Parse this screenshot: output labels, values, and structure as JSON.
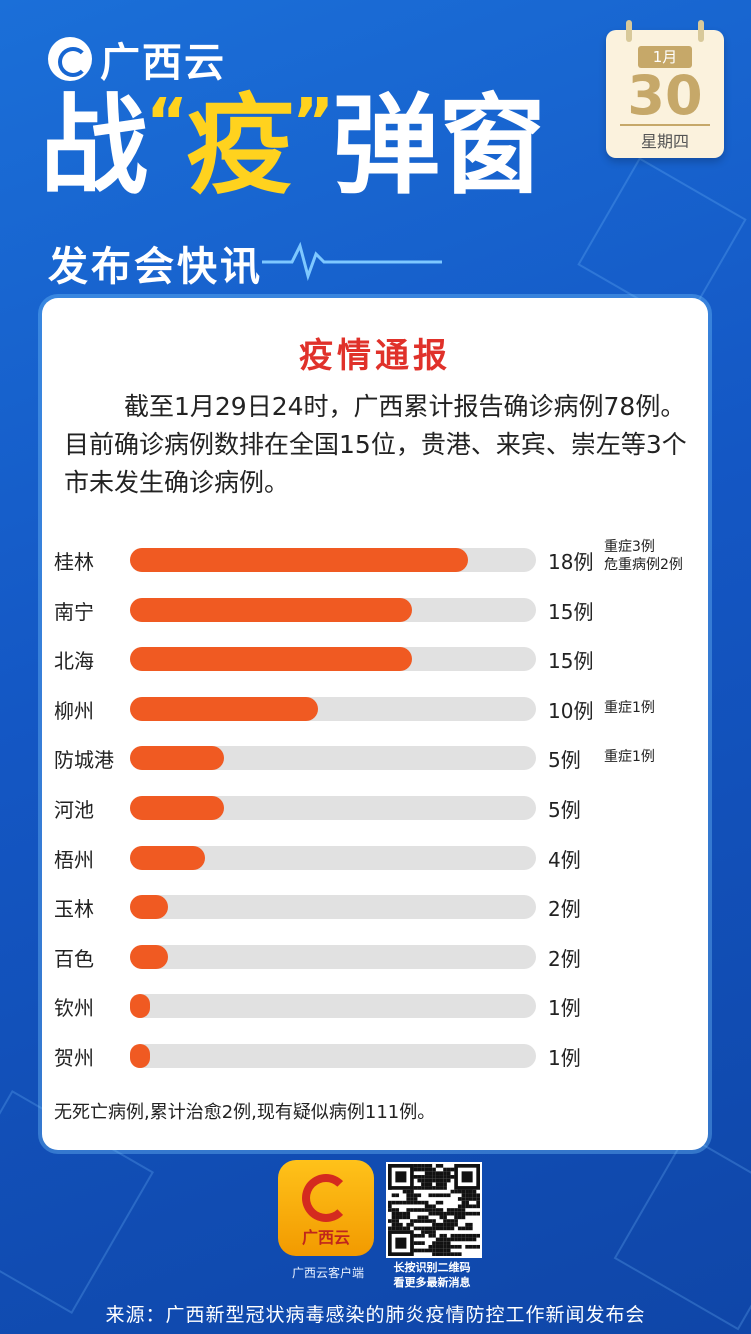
{
  "header": {
    "brand": "广西云",
    "headline_a": "战",
    "headline_b": "疫",
    "headline_c": "弹窗",
    "quote_open": "“",
    "quote_close": "”",
    "subhead": "发布会快讯"
  },
  "calendar": {
    "month": "1月",
    "day": "30",
    "weekday": "星期四"
  },
  "card": {
    "title": "疫情通报",
    "notice": "截至1月29日24时，广西累计报告确诊病例78例。目前确诊病例数排在全国15位，贵港、来宾、崇左等3个市未发生确诊病例。",
    "footnote": "无死亡病例,累计治愈2例,现有疑似病例111例。"
  },
  "chart_data": {
    "type": "bar",
    "orientation": "horizontal",
    "categories": [
      "桂林",
      "南宁",
      "北海",
      "柳州",
      "防城港",
      "河池",
      "梧州",
      "玉林",
      "百色",
      "钦州",
      "贺州"
    ],
    "values": [
      18,
      15,
      15,
      10,
      5,
      5,
      4,
      2,
      2,
      1,
      1
    ],
    "value_labels": [
      "18例",
      "15例",
      "15例",
      "10例",
      "5例",
      "5例",
      "4例",
      "2例",
      "2例",
      "1例",
      "1例"
    ],
    "notes": [
      [
        "重症3例",
        "危重病例2例"
      ],
      [],
      [],
      [
        "重症1例"
      ],
      [
        "重症1例"
      ],
      [],
      [],
      [],
      [],
      [],
      []
    ],
    "xlim": [
      0,
      21.6
    ],
    "bar_color": "#f05a22",
    "track_color": "#e1e1e1"
  },
  "footer": {
    "app_name": "广西云",
    "app_caption": "广西云客户端",
    "qr_caption_1": "长按识别二维码",
    "qr_caption_2": "看更多最新消息",
    "source": "来源：广西新型冠状病毒感染的肺炎疫情防控工作新闻发布会"
  }
}
